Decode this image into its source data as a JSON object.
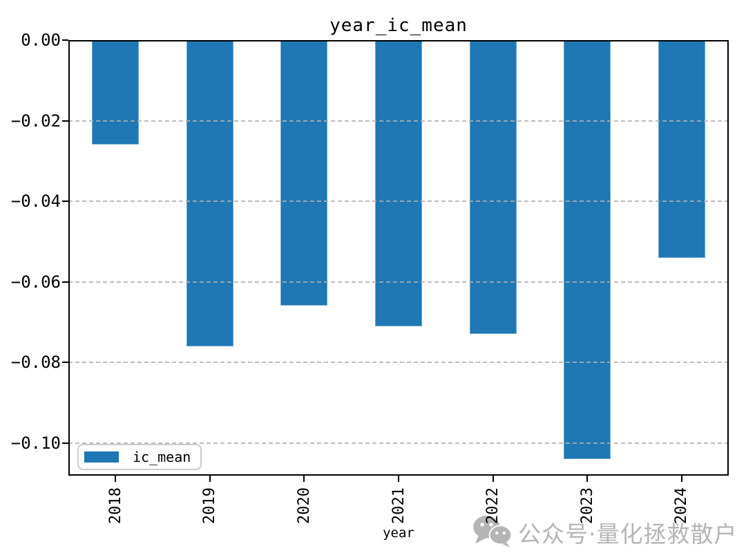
{
  "chart_data": {
    "type": "bar",
    "title": "year_ic_mean",
    "xlabel": "year",
    "ylabel": "",
    "categories": [
      "2018",
      "2019",
      "2020",
      "2021",
      "2022",
      "2023",
      "2024"
    ],
    "series": [
      {
        "name": "ic_mean",
        "color": "#1f77b4",
        "values": [
          -0.026,
          -0.076,
          -0.066,
          -0.071,
          -0.073,
          -0.104,
          -0.054
        ]
      }
    ],
    "ylim": [
      -0.10815,
      0
    ],
    "yticks": [
      {
        "label": "0.00",
        "value": 0
      },
      {
        "label": "−0.02",
        "value": -0.02
      },
      {
        "label": "−0.04",
        "value": -0.04
      },
      {
        "label": "−0.06",
        "value": -0.06
      },
      {
        "label": "−0.08",
        "value": -0.08
      },
      {
        "label": "−0.10",
        "value": -0.1
      }
    ],
    "grid": "horizontal-dashed",
    "legend_position": "lower-left"
  },
  "legend": {
    "label": "ic_mean"
  },
  "watermark": {
    "icon": "wechat-icon",
    "text": "公众号·量化拯救散户",
    "color": "#b5b5b5"
  },
  "colors": {
    "bar": "#1f77b4",
    "grid": "#b0b0b0",
    "text": "#000000",
    "watermark": "#b5b5b5",
    "legend_border": "#cccccc"
  }
}
